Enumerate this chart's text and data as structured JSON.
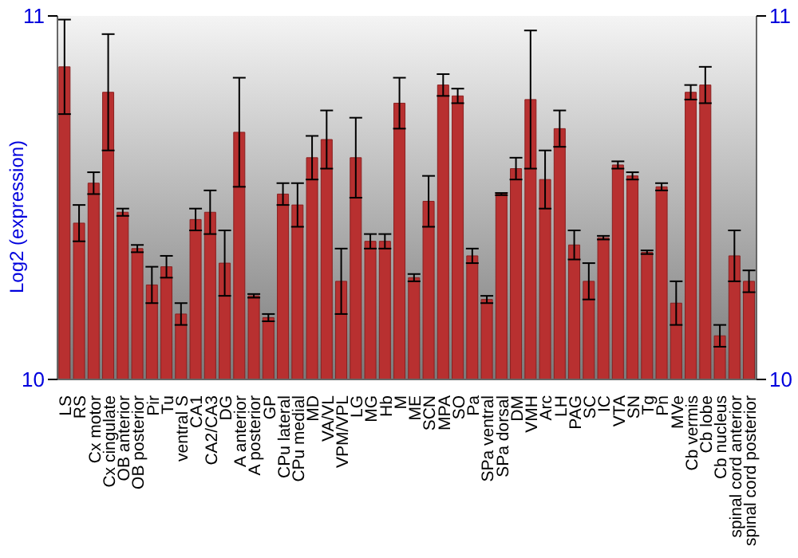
{
  "chart_data": {
    "type": "bar",
    "ylabel": "Log2 (expression)",
    "categories": [
      "LS",
      "RS",
      "Cx motor",
      "Cx cingulate",
      "OB anterior",
      "OB posterior",
      "Pir",
      "Tu",
      "ventral S",
      "CA1",
      "CA2/CA3",
      "DG",
      "A anterior",
      "A posterior",
      "GP",
      "CPu lateral",
      "CPu medial",
      "MD",
      "VA/VL",
      "VPM/VPL",
      "LG",
      "MG",
      "Hb",
      "M",
      "ME",
      "SCN",
      "MPA",
      "SO",
      "Pa",
      "SPa ventral",
      "SPa dorsal",
      "DM",
      "VMH",
      "Arc",
      "LH",
      "PAG",
      "SC",
      "IC",
      "VTA",
      "SN",
      "Tg",
      "Pn",
      "MVe",
      "Cb vermis",
      "Cb lobe",
      "Cb nucleus",
      "spinal cord anterior",
      "spinal cord posterior"
    ],
    "values": [
      10.86,
      10.43,
      10.54,
      10.79,
      10.46,
      10.36,
      10.26,
      10.31,
      10.18,
      10.44,
      10.46,
      10.32,
      10.68,
      10.23,
      10.17,
      10.51,
      10.48,
      10.61,
      10.66,
      10.27,
      10.61,
      10.38,
      10.38,
      10.76,
      10.28,
      10.49,
      10.81,
      10.78,
      10.34,
      10.22,
      10.51,
      10.58,
      10.77,
      10.55,
      10.69,
      10.37,
      10.27,
      10.39,
      10.59,
      10.56,
      10.35,
      10.53,
      10.21,
      10.79,
      10.81,
      10.12,
      10.34,
      10.27
    ],
    "errors": [
      0.13,
      0.05,
      0.03,
      0.16,
      0.01,
      0.01,
      0.05,
      0.03,
      0.03,
      0.03,
      0.06,
      0.09,
      0.15,
      0.005,
      0.01,
      0.03,
      0.06,
      0.06,
      0.08,
      0.09,
      0.11,
      0.02,
      0.02,
      0.07,
      0.01,
      0.07,
      0.03,
      0.02,
      0.02,
      0.01,
      0.003,
      0.03,
      0.19,
      0.08,
      0.05,
      0.04,
      0.05,
      0.005,
      0.01,
      0.01,
      0.005,
      0.01,
      0.06,
      0.02,
      0.05,
      0.03,
      0.07,
      0.03
    ],
    "color": "#b83030",
    "ylim": [
      10,
      11
    ],
    "yticks": [
      10,
      11
    ],
    "y2lim": [
      10,
      11
    ],
    "y2ticks": [
      10,
      11
    ],
    "grid": false
  }
}
